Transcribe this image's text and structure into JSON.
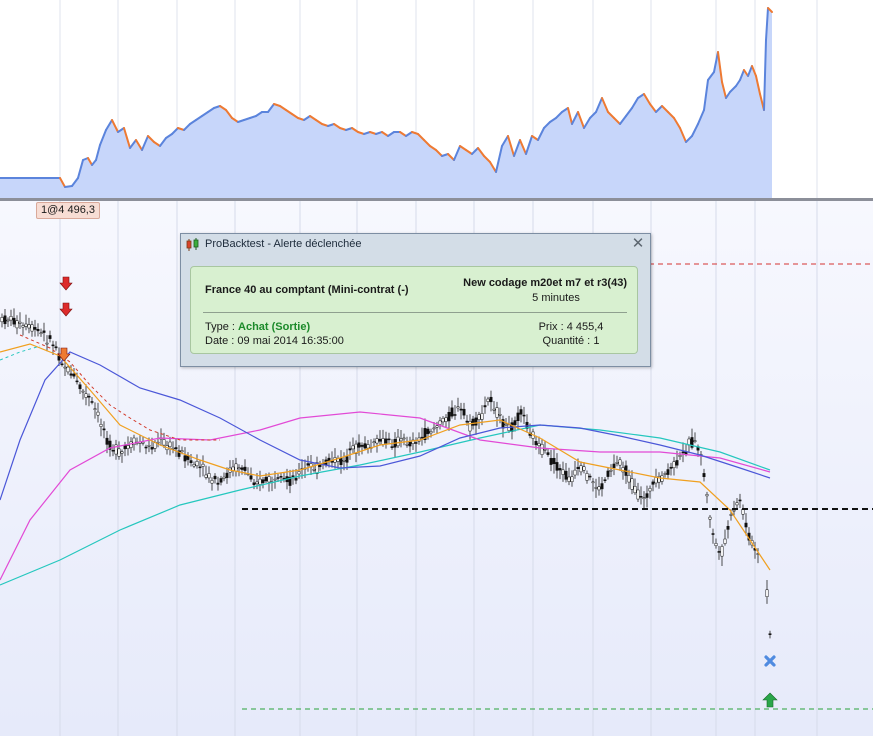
{
  "price_tag": "1@4 496,3",
  "alert": {
    "title": "ProBacktest - Alerte déclenchée",
    "close_symbol": "✕",
    "instrument": "France 40 au comptant (Mini-contrat  (-)",
    "strategy": "New codage m20et m7 et r3(43)",
    "timeframe": "5 minutes",
    "type_label": "Type :",
    "type_value": "Achat (Sortie)",
    "date_label": "Date :",
    "date_value": "09 mai 2014 16:35:00",
    "price_label": "Prix :",
    "price_value": "4 455,4",
    "quantity_label": "Quantité :",
    "quantity_value": "1"
  },
  "colors": {
    "equity_fill": "#c7d6fa",
    "equity_line": "#5b84dc",
    "equity_down": "#ee7a33",
    "ma_slow": "#25c7be",
    "ma_mid": "#e24ad6",
    "ma_blue": "#4b57d8",
    "ma_fast": "#f0a020",
    "ma_red": "#d23b2b",
    "support_line": "#111111",
    "resistance_line": "#d53333",
    "target_line": "#29a33a",
    "sell_arrow": "#dd2b2b",
    "buy_arrow": "#2aa64a",
    "exit_cross": "#4f8be0"
  },
  "icons": [
    "down-arrow-icon",
    "up-arrow-icon",
    "exit-cross-icon",
    "candlestick-app-icon",
    "close-icon"
  ]
}
